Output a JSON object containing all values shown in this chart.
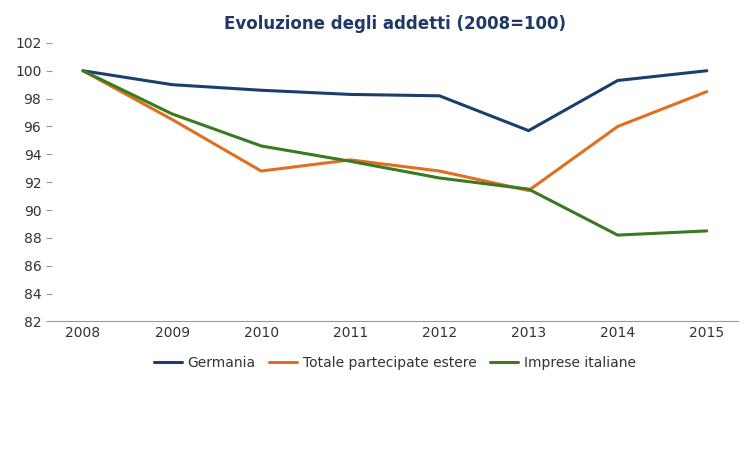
{
  "title": "Evoluzione degli addetti (2008=100)",
  "title_color": "#1f3864",
  "years": [
    2008,
    2009,
    2010,
    2011,
    2012,
    2013,
    2014,
    2015
  ],
  "series": {
    "Germania": {
      "values": [
        100.0,
        99.0,
        98.6,
        98.3,
        98.2,
        95.7,
        99.3,
        100.0
      ],
      "color": "#1a3e6e",
      "linewidth": 2.2
    },
    "Totale partecipate estere": {
      "values": [
        100.0,
        96.5,
        92.8,
        93.6,
        92.8,
        91.4,
        96.0,
        98.5
      ],
      "color": "#e07020",
      "linewidth": 2.2
    },
    "Imprese italiane": {
      "values": [
        100.0,
        96.9,
        94.6,
        93.5,
        92.3,
        91.5,
        88.2,
        88.5
      ],
      "color": "#3a7a20",
      "linewidth": 2.2
    }
  },
  "ylim": [
    82,
    102
  ],
  "yticks": [
    82,
    84,
    86,
    88,
    90,
    92,
    94,
    96,
    98,
    100,
    102
  ],
  "xticks": [
    2008,
    2009,
    2010,
    2011,
    2012,
    2013,
    2014,
    2015
  ],
  "background_color": "#ffffff",
  "legend_ncol": 3
}
